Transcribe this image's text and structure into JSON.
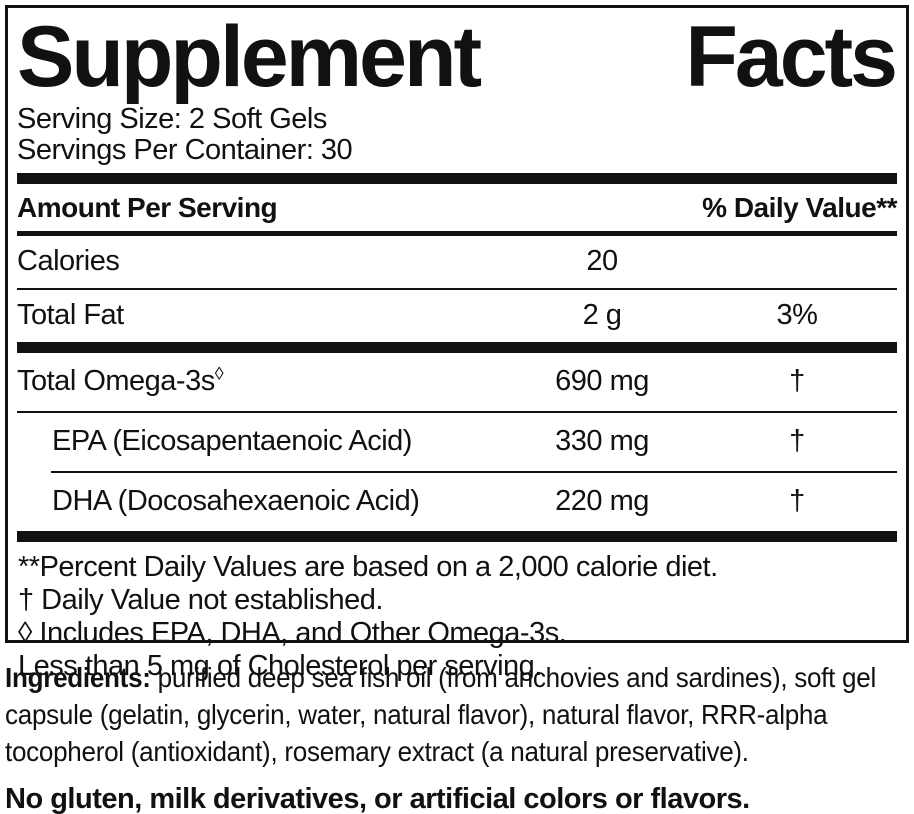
{
  "label": {
    "title": {
      "left": "Supplement",
      "right": "Facts"
    },
    "serving_size": "Serving Size: 2 Soft Gels",
    "servings_per_container": "Servings Per Container: 30",
    "header": {
      "amount_label": "Amount Per Serving",
      "daily_value_label": "% Daily Value**"
    },
    "rows": [
      {
        "name": "Calories",
        "amount": "20",
        "dv": ""
      },
      {
        "name": "Total Fat",
        "amount": "2 g",
        "dv": "3%"
      },
      {
        "name": "Total Omega-3s",
        "name_sup": "◊",
        "amount": "690 mg",
        "dv": "†"
      },
      {
        "name": "EPA (Eicosapentaenoic Acid)",
        "amount": "330 mg",
        "dv": "†"
      },
      {
        "name": "DHA (Docosahexaenoic Acid)",
        "amount": "220 mg",
        "dv": "†"
      }
    ],
    "footnotes": [
      "**Percent Daily Values are based on a 2,000 calorie diet.",
      "† Daily Value not established.",
      "◊ Includes EPA, DHA, and Other Omega-3s.",
      "Less than 5 mg of Cholesterol per serving."
    ]
  },
  "ingredients": {
    "lead": "Ingredients:",
    "text": " purified deep sea fish oil (from anchovies and sardines), soft gel capsule (gelatin, glycerin, water, natural flavor), natural flavor, RRR-alpha tocopherol (antioxidant), rosemary extract (a natural preservative)."
  },
  "allergen_note": "No gluten, milk derivatives, or artificial colors or flavors.",
  "colors": {
    "text": "#111111",
    "background": "#ffffff",
    "border": "#111111"
  }
}
